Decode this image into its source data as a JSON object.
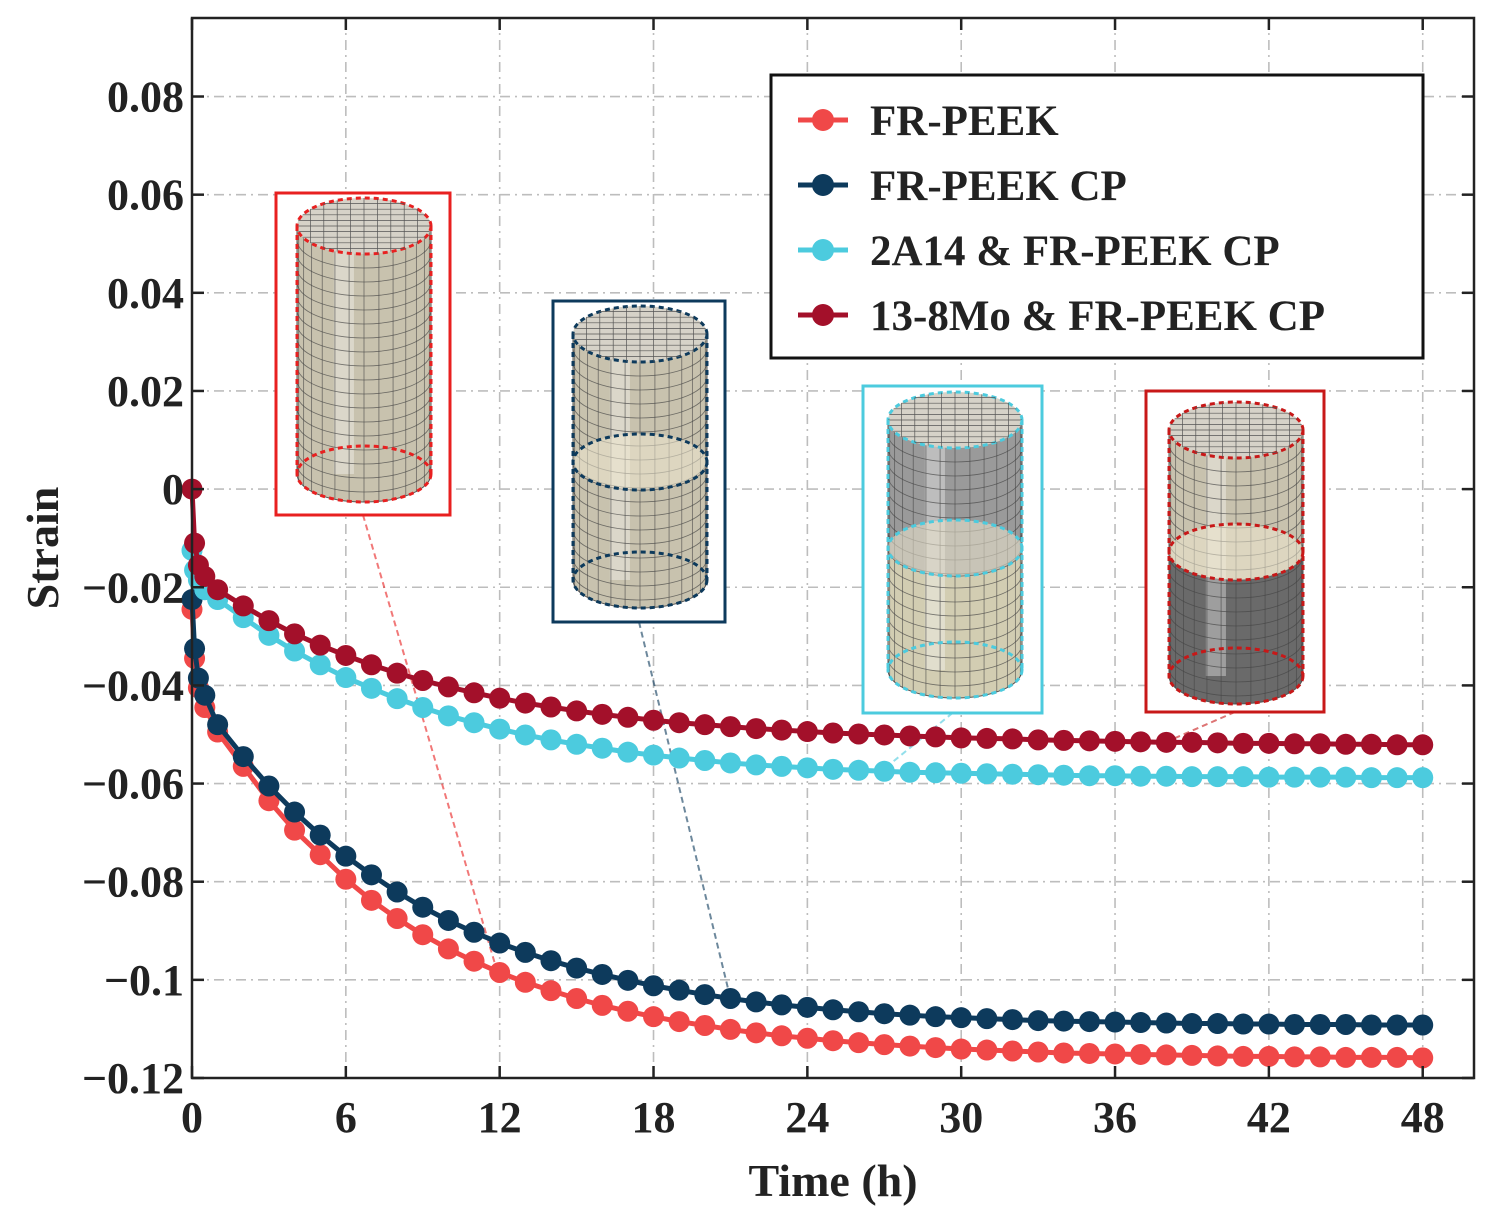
{
  "chart_data": {
    "type": "line",
    "title": "",
    "xlabel": "Time (h)",
    "ylabel": "Strain",
    "xlim": [
      0,
      50
    ],
    "ylim": [
      -0.12,
      0.096
    ],
    "grid": true,
    "legend_position": "top-right",
    "xticks": [
      0,
      6,
      12,
      18,
      24,
      30,
      36,
      42,
      48
    ],
    "xtick_labels": [
      "0",
      "6",
      "12",
      "18",
      "24",
      "30",
      "36",
      "42",
      "48"
    ],
    "yticks": [
      0.08,
      0.06,
      0.04,
      0.02,
      0,
      -0.02,
      -0.04,
      -0.06,
      -0.08,
      -0.1,
      -0.12
    ],
    "ytick_labels": [
      "0.08",
      "0.06",
      "0.04",
      "0.02",
      "0",
      "−0.02",
      "−0.04",
      "−0.06",
      "−0.08",
      "−0.1",
      "−0.12"
    ],
    "x": [
      0,
      0.1,
      0.25,
      0.5,
      1,
      2,
      3,
      4,
      5,
      6,
      7,
      8,
      9,
      10,
      11,
      12,
      13,
      14,
      15,
      16,
      17,
      18,
      19,
      20,
      21,
      22,
      23,
      24,
      25,
      26,
      27,
      28,
      29,
      30,
      31,
      32,
      33,
      34,
      35,
      36,
      37,
      38,
      39,
      40,
      41,
      42,
      43,
      44,
      45,
      46,
      47,
      48
    ],
    "series": [
      {
        "name": "FR-PEEK",
        "color": "#f04848",
        "values": [
          -0.0245,
          -0.0345,
          -0.0405,
          -0.0445,
          -0.0495,
          -0.0565,
          -0.0635,
          -0.0695,
          -0.0745,
          -0.0795,
          -0.0838,
          -0.0875,
          -0.0908,
          -0.0937,
          -0.0962,
          -0.0985,
          -0.1005,
          -0.1022,
          -0.1038,
          -0.1052,
          -0.1064,
          -0.1075,
          -0.1085,
          -0.1093,
          -0.1101,
          -0.1108,
          -0.1114,
          -0.1119,
          -0.1124,
          -0.1128,
          -0.1132,
          -0.1135,
          -0.1138,
          -0.1141,
          -0.1143,
          -0.1145,
          -0.1147,
          -0.1149,
          -0.115,
          -0.1151,
          -0.1152,
          -0.1153,
          -0.1154,
          -0.1155,
          -0.1156,
          -0.1156,
          -0.1157,
          -0.1157,
          -0.1158,
          -0.1158,
          -0.1158,
          -0.1159
        ]
      },
      {
        "name": "FR-PEEK CP",
        "color": "#0d3a5c",
        "values": [
          -0.0225,
          -0.0325,
          -0.0385,
          -0.042,
          -0.048,
          -0.0545,
          -0.0605,
          -0.0658,
          -0.0705,
          -0.0748,
          -0.0786,
          -0.0821,
          -0.0852,
          -0.0879,
          -0.0903,
          -0.0925,
          -0.0944,
          -0.0961,
          -0.0976,
          -0.0989,
          -0.1001,
          -0.1012,
          -0.1021,
          -0.103,
          -0.1038,
          -0.1045,
          -0.1051,
          -0.1056,
          -0.1061,
          -0.1065,
          -0.1069,
          -0.1072,
          -0.1075,
          -0.1077,
          -0.1079,
          -0.1081,
          -0.1083,
          -0.1084,
          -0.1085,
          -0.1086,
          -0.1087,
          -0.1088,
          -0.1089,
          -0.1089,
          -0.109,
          -0.109,
          -0.1091,
          -0.1091,
          -0.1091,
          -0.1092,
          -0.1092,
          -0.1092
        ]
      },
      {
        "name": "2A14 & FR-PEEK CP",
        "color": "#4ccbde",
        "values": [
          -0.0125,
          -0.0165,
          -0.0185,
          -0.0205,
          -0.0225,
          -0.0262,
          -0.0298,
          -0.033,
          -0.0358,
          -0.0384,
          -0.0406,
          -0.0427,
          -0.0445,
          -0.0462,
          -0.0476,
          -0.0489,
          -0.0501,
          -0.0511,
          -0.052,
          -0.0528,
          -0.0536,
          -0.0542,
          -0.0548,
          -0.0553,
          -0.0558,
          -0.0562,
          -0.0565,
          -0.0568,
          -0.0571,
          -0.0573,
          -0.0575,
          -0.0577,
          -0.0578,
          -0.0579,
          -0.058,
          -0.0581,
          -0.0582,
          -0.0583,
          -0.0584,
          -0.0584,
          -0.0585,
          -0.0585,
          -0.0586,
          -0.0586,
          -0.0586,
          -0.0587,
          -0.0587,
          -0.0587,
          -0.0587,
          -0.0588,
          -0.0588,
          -0.0588
        ]
      },
      {
        "name": "13-8Mo & FR-PEEK CP",
        "color": "#a3102a",
        "values": [
          0,
          -0.011,
          -0.0155,
          -0.0178,
          -0.0205,
          -0.0238,
          -0.0268,
          -0.0295,
          -0.0318,
          -0.0339,
          -0.0358,
          -0.0375,
          -0.039,
          -0.0403,
          -0.0415,
          -0.0426,
          -0.0436,
          -0.0444,
          -0.0452,
          -0.0459,
          -0.0465,
          -0.0471,
          -0.0476,
          -0.048,
          -0.0484,
          -0.0488,
          -0.0491,
          -0.0494,
          -0.0497,
          -0.0499,
          -0.0501,
          -0.0503,
          -0.0505,
          -0.0507,
          -0.0508,
          -0.0509,
          -0.0511,
          -0.0512,
          -0.0513,
          -0.0514,
          -0.0515,
          -0.0516,
          -0.0516,
          -0.0517,
          -0.0518,
          -0.0518,
          -0.0519,
          -0.0519,
          -0.052,
          -0.052,
          -0.0521,
          -0.0521
        ]
      }
    ],
    "insets": [
      {
        "name": "fr-peek-specimen",
        "frame_color": "#e82020",
        "dash_color": "#e82020",
        "body_color": "#c8c2ae",
        "lower_color": "#c8c2ae",
        "split": false,
        "anchor": [
          12,
          -0.1
        ]
      },
      {
        "name": "fr-peek-cp-specimen",
        "frame_color": "#0d3a5c",
        "dash_color": "#0d3a5c",
        "body_color": "#c8c2ae",
        "lower_color": "#c8c2ae",
        "split": true,
        "anchor": [
          21,
          -0.1038
        ]
      },
      {
        "name": "2a14-fr-peek-cp-specimen",
        "frame_color": "#4ccbde",
        "dash_color": "#4ccbde",
        "body_color": "#9a9a9a",
        "lower_color": "#d2cdb2",
        "split": true,
        "anchor": [
          27,
          -0.057
        ]
      },
      {
        "name": "13-8mo-fr-peek-cp-specimen",
        "frame_color": "#c81818",
        "dash_color": "#c81818",
        "body_color": "#c8c2ae",
        "lower_color": "#6a6a6a",
        "split": true,
        "anchor": [
          38,
          -0.0515
        ]
      }
    ]
  }
}
